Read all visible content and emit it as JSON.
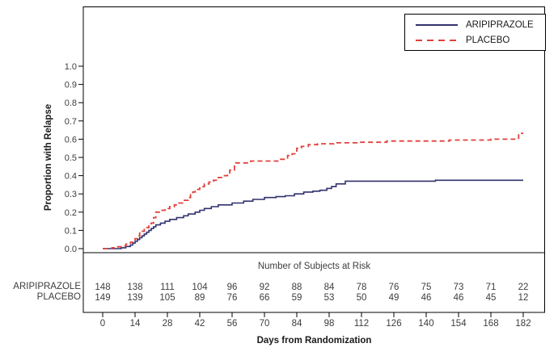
{
  "chart_data": {
    "type": "line",
    "subtype": "kaplan-meier-step",
    "title": "",
    "xlabel": "Days from Randomization",
    "ylabel": "Proportion with Relapse",
    "xlim": [
      0,
      182
    ],
    "ylim": [
      0,
      1.0
    ],
    "x_ticks": [
      0,
      14,
      28,
      42,
      56,
      70,
      84,
      98,
      112,
      126,
      140,
      154,
      168,
      182
    ],
    "y_tick_labels": [
      "0.0",
      "0.1",
      "0.2",
      "0.3",
      "0.4",
      "0.5",
      "0.6",
      "0.7",
      "0.8",
      "0.9",
      "1.0"
    ],
    "grid": false,
    "legend_position": "top-right-inside",
    "series": [
      {
        "name": "ARIPIPRAZOLE",
        "color": "#31316e",
        "line_style": "solid",
        "steps": [
          [
            0,
            0
          ],
          [
            8,
            0.005
          ],
          [
            10,
            0.012
          ],
          [
            12,
            0.02
          ],
          [
            13,
            0.03
          ],
          [
            14,
            0.04
          ],
          [
            15,
            0.05
          ],
          [
            16,
            0.06
          ],
          [
            17,
            0.07
          ],
          [
            18,
            0.08
          ],
          [
            19,
            0.09
          ],
          [
            20,
            0.1
          ],
          [
            21,
            0.11
          ],
          [
            22,
            0.12
          ],
          [
            23,
            0.13
          ],
          [
            25,
            0.14
          ],
          [
            27,
            0.15
          ],
          [
            29,
            0.16
          ],
          [
            32,
            0.17
          ],
          [
            35,
            0.18
          ],
          [
            37,
            0.19
          ],
          [
            40,
            0.2
          ],
          [
            42,
            0.21
          ],
          [
            44,
            0.22
          ],
          [
            47,
            0.23
          ],
          [
            50,
            0.24
          ],
          [
            56,
            0.25
          ],
          [
            61,
            0.26
          ],
          [
            65,
            0.27
          ],
          [
            70,
            0.28
          ],
          [
            75,
            0.285
          ],
          [
            79,
            0.29
          ],
          [
            83,
            0.3
          ],
          [
            87,
            0.31
          ],
          [
            91,
            0.315
          ],
          [
            94,
            0.32
          ],
          [
            97,
            0.33
          ],
          [
            99,
            0.34
          ],
          [
            101,
            0.355
          ],
          [
            105,
            0.37
          ],
          [
            144,
            0.375
          ],
          [
            182,
            0.375
          ]
        ]
      },
      {
        "name": "PLACEBO",
        "color": "#e0413c",
        "line_style": "dashed",
        "steps": [
          [
            0,
            0
          ],
          [
            4,
            0.005
          ],
          [
            6,
            0.01
          ],
          [
            8,
            0.015
          ],
          [
            10,
            0.025
          ],
          [
            12,
            0.035
          ],
          [
            13,
            0.045
          ],
          [
            14,
            0.055
          ],
          [
            15,
            0.07
          ],
          [
            16,
            0.085
          ],
          [
            17,
            0.095
          ],
          [
            18,
            0.105
          ],
          [
            19,
            0.115
          ],
          [
            20,
            0.125
          ],
          [
            21,
            0.14
          ],
          [
            22,
            0.17
          ],
          [
            23,
            0.2
          ],
          [
            25,
            0.21
          ],
          [
            27,
            0.22
          ],
          [
            29,
            0.23
          ],
          [
            31,
            0.24
          ],
          [
            33,
            0.25
          ],
          [
            35,
            0.265
          ],
          [
            37,
            0.28
          ],
          [
            38,
            0.295
          ],
          [
            39,
            0.31
          ],
          [
            40,
            0.325
          ],
          [
            42,
            0.34
          ],
          [
            44,
            0.355
          ],
          [
            46,
            0.365
          ],
          [
            48,
            0.375
          ],
          [
            50,
            0.39
          ],
          [
            52,
            0.4
          ],
          [
            54,
            0.415
          ],
          [
            55,
            0.43
          ],
          [
            57,
            0.47
          ],
          [
            64,
            0.48
          ],
          [
            77,
            0.49
          ],
          [
            80,
            0.51
          ],
          [
            82,
            0.52
          ],
          [
            84,
            0.55
          ],
          [
            86,
            0.56
          ],
          [
            89,
            0.57
          ],
          [
            93,
            0.575
          ],
          [
            100,
            0.58
          ],
          [
            110,
            0.583
          ],
          [
            123,
            0.59
          ],
          [
            150,
            0.595
          ],
          [
            168,
            0.6
          ],
          [
            180,
            0.632
          ],
          [
            182,
            0.632
          ]
        ]
      }
    ],
    "risk_table": {
      "title": "Number of Subjects at Risk",
      "days": [
        0,
        14,
        28,
        42,
        56,
        70,
        84,
        98,
        112,
        126,
        140,
        154,
        168,
        182
      ],
      "rows": [
        {
          "label": "ARIPIPRAZOLE",
          "values": [
            148,
            138,
            111,
            104,
            96,
            92,
            88,
            84,
            78,
            76,
            75,
            73,
            71,
            22
          ]
        },
        {
          "label": "PLACEBO",
          "values": [
            149,
            139,
            105,
            89,
            76,
            66,
            59,
            53,
            50,
            49,
            46,
            46,
            45,
            12
          ]
        }
      ]
    },
    "colors": {
      "aripiprazole": "#31316e",
      "placebo": "#e0413c",
      "axis": "#000000",
      "tick_text": "#3d3d3d"
    }
  }
}
